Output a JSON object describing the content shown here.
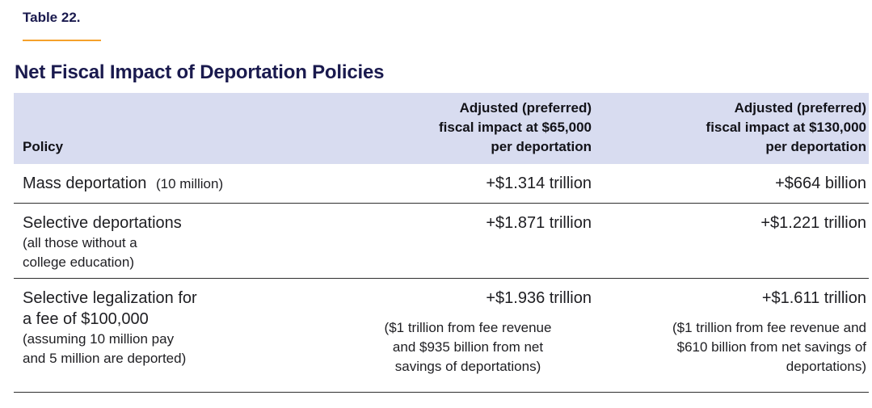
{
  "table_label": "Table 22.",
  "title": "Net Fiscal Impact of Deportation Policies",
  "colors": {
    "accent_orange": "#F5A12B",
    "title_navy": "#1A1A4E",
    "header_background": "#D8DCF0",
    "body_text": "#1E1E22",
    "rule_line": "#2E2E2E"
  },
  "columns": {
    "policy": "Policy",
    "impact_65000": "Adjusted (preferred)\nfiscal impact at $65,000\nper deportation",
    "impact_130000": "Adjusted (preferred)\nfiscal impact at $130,000\nper deportation"
  },
  "rows": [
    {
      "policy_main": "Mass deportation",
      "policy_note": "(10 million)",
      "impact_65000": "+$1.314 trillion",
      "impact_130000": "+$664 billion"
    },
    {
      "policy_main": "Selective deportations",
      "policy_note": "(all those without a\ncollege education)",
      "impact_65000": "+$1.871 trillion",
      "impact_130000": "+$1.221 trillion"
    },
    {
      "policy_main": "Selective legalization for\na fee of $100,000",
      "policy_note": "(assuming 10 million pay\nand 5 million are deported)",
      "impact_65000": "+$1.936 trillion",
      "impact_65000_note": "($1 trillion from fee revenue\nand $935 billion from net\nsavings of deportations)",
      "impact_130000": "+$1.611 trillion",
      "impact_130000_note": "($1 trillion from fee revenue and\n$610  billion from net savings of\ndeportations)"
    }
  ],
  "chart_data": {
    "type": "table",
    "title": "Net Fiscal Impact of Deportation Policies",
    "columns": [
      "Policy",
      "Adjusted (preferred) fiscal impact at $65,000 per deportation",
      "Adjusted (preferred) fiscal impact at $130,000 per deportation"
    ],
    "rows": [
      [
        "Mass deportation (10 million)",
        "+$1.314 trillion",
        "+$664 billion"
      ],
      [
        "Selective deportations (all those without a college education)",
        "+$1.871 trillion",
        "+$1.221 trillion"
      ],
      [
        "Selective legalization for a fee of $100,000 (assuming 10 million pay and 5 million are deported)",
        "+$1.936 trillion ($1 trillion from fee revenue and $935 billion from net savings of deportations)",
        "+$1.611 trillion ($1 trillion from fee revenue and $610 billion from net savings of deportations)"
      ]
    ]
  }
}
